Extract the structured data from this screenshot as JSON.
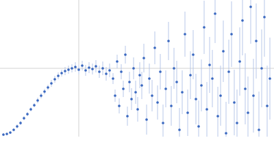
{
  "chart_data": {
    "type": "scatter",
    "color": "#3a68c0",
    "error_color": "#b7c7e8",
    "grid": true,
    "xlim": [
      0,
      400
    ],
    "ylim": [
      0,
      200
    ],
    "xticks": [
      115
    ],
    "yticks": [
      100
    ],
    "series": [
      {
        "color": "#3a68c0",
        "x": [
          5,
          10,
          15,
          20,
          25,
          30,
          35,
          40,
          45,
          50,
          55,
          60,
          65,
          70,
          75,
          80,
          85,
          90,
          95,
          100,
          105,
          110,
          115,
          120,
          125,
          130,
          135,
          140,
          145,
          150,
          155,
          160,
          165,
          168,
          171,
          174,
          177,
          180,
          183,
          186,
          189,
          192,
          195,
          198,
          201,
          204,
          207,
          210,
          214,
          218,
          222,
          226,
          230,
          234,
          238,
          242,
          246,
          250,
          254,
          258,
          262,
          266,
          270,
          274,
          278,
          282,
          286,
          290,
          294,
          298,
          302,
          306,
          310,
          314,
          318,
          322,
          326,
          330,
          334,
          338,
          342,
          346,
          350,
          354,
          358,
          362,
          366,
          370,
          374,
          378,
          382,
          386,
          390,
          394
        ],
        "values": [
          3,
          4,
          6,
          10,
          15,
          20,
          27,
          33,
          40,
          46,
          53,
          60,
          66,
          72,
          78,
          84,
          89,
          93,
          96,
          98,
          100,
          102,
          98,
          104,
          97,
          101,
          99,
          103,
          95,
          100,
          92,
          97,
          85,
          60,
          110,
          45,
          95,
          70,
          120,
          30,
          80,
          55,
          100,
          65,
          40,
          90,
          75,
          115,
          25,
          85,
          60,
          130,
          50,
          95,
          20,
          70,
          140,
          45,
          100,
          80,
          10,
          65,
          150,
          35,
          90,
          120,
          55,
          15,
          75,
          160,
          40,
          105,
          85,
          180,
          30,
          60,
          125,
          5,
          95,
          150,
          50,
          20,
          110,
          170,
          70,
          35,
          190,
          60,
          140,
          10,
          100,
          175,
          45,
          85
        ],
        "error": [
          2,
          2,
          2,
          2,
          3,
          3,
          3,
          3,
          3,
          3,
          4,
          4,
          4,
          4,
          5,
          5,
          5,
          5,
          6,
          6,
          6,
          7,
          7,
          7,
          8,
          8,
          8,
          9,
          9,
          10,
          10,
          10,
          8,
          9,
          10,
          11,
          11,
          12,
          13,
          14,
          15,
          16,
          16,
          17,
          18,
          19,
          20,
          21,
          22,
          22,
          23,
          24,
          25,
          26,
          27,
          27,
          28,
          29,
          30,
          31,
          32,
          32,
          33,
          34,
          35,
          36,
          37,
          38,
          38,
          39,
          40,
          41,
          42,
          43,
          43,
          44,
          45,
          46,
          47,
          48,
          48,
          49,
          50,
          51,
          52,
          53,
          54,
          54,
          55,
          56,
          57,
          58,
          59,
          60
        ]
      }
    ]
  }
}
